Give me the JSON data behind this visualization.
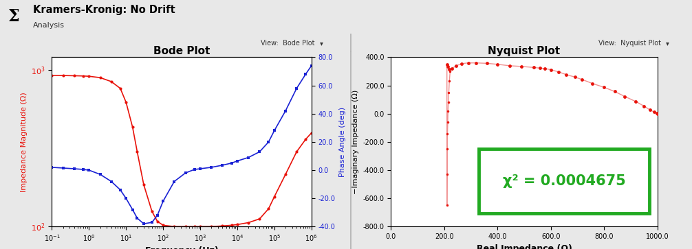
{
  "bode_title": "Bode Plot",
  "nyquist_title": "Nyquist Plot",
  "header_title": "Kramers-Kronig: No Drift",
  "header_subtitle": "Analysis",
  "view_bode": "View:  Bode Plot",
  "view_nyquist": "View:  Nyquist Plot",
  "bode_xlabel": "Frequency (Hz)",
  "bode_ylabel_left": "Impedance Magnitude (Ω)",
  "bode_ylabel_right": "Phase Angle (deg)",
  "nyquist_xlabel": "Real Impedance (Ω)",
  "nyquist_ylabel": "−Imaginary Impedance (Ω)",
  "chi2_text": "χ² = 0.0004675",
  "bode_freq": [
    0.1,
    0.2,
    0.4,
    0.7,
    1.0,
    2.0,
    4.0,
    7.0,
    10.0,
    15.0,
    20.0,
    30.0,
    50.0,
    70.0,
    100.0,
    200.0,
    400.0,
    700.0,
    1000.0,
    2000.0,
    4000.0,
    7000.0,
    10000.0,
    20000.0,
    40000.0,
    70000.0,
    100000.0,
    200000.0,
    400000.0,
    700000.0,
    1000000.0
  ],
  "bode_mag": [
    920,
    918,
    915,
    912,
    908,
    890,
    840,
    760,
    620,
    430,
    300,
    185,
    125,
    108,
    102,
    100,
    100,
    100,
    100,
    100,
    101,
    102,
    103,
    106,
    112,
    130,
    155,
    215,
    300,
    360,
    395
  ],
  "bode_phase": [
    2.0,
    1.5,
    1.0,
    0.5,
    0.0,
    -3.0,
    -8.0,
    -14.0,
    -20.0,
    -28.0,
    -34.0,
    -38.0,
    -37.0,
    -32.0,
    -22.0,
    -8.0,
    -2.0,
    0.5,
    1.0,
    2.0,
    3.5,
    5.0,
    6.5,
    9.0,
    13.0,
    20.0,
    28.0,
    42.0,
    58.0,
    68.0,
    74.0
  ],
  "nyquist_real_upper": [
    210.0,
    213.0,
    218.0,
    228.0,
    245.0,
    265.0,
    290.0,
    320.0,
    360.0,
    400.0,
    445.0,
    490.0,
    535.0,
    560.0,
    578.0,
    600.0,
    628.0,
    658.0,
    690.0,
    718.0,
    755.0,
    800.0,
    840.0,
    878.0,
    918.0,
    950.0,
    972.0,
    988.0,
    997.0,
    1000.0
  ],
  "nyquist_imag_upper": [
    350.0,
    335.0,
    315.0,
    320.0,
    340.0,
    355.0,
    360.0,
    360.0,
    357.0,
    350.0,
    340.0,
    335.0,
    328.0,
    323.0,
    320.0,
    312.0,
    297.0,
    277.0,
    260.0,
    242.0,
    215.0,
    187.0,
    157.0,
    122.0,
    87.0,
    54.0,
    27.0,
    12.0,
    3.0,
    0.0
  ],
  "nyquist_real_lower": [
    210.0,
    210.5,
    211.0,
    212.0,
    213.0,
    214.0,
    215.0,
    217.0,
    219.0,
    222.0
  ],
  "nyquist_imag_lower": [
    -650.0,
    -430.0,
    -250.0,
    -140.0,
    -60.0,
    20.0,
    80.0,
    150.0,
    230.0,
    300.0
  ],
  "bode_color_mag": "#e8120a",
  "bode_color_phase": "#1a22d4",
  "nyquist_color_main": "#e8120a",
  "nyquist_color_line": "#f09090",
  "bg_color": "#e8e8e8",
  "plot_bg_color": "#ffffff",
  "header_bg": "#d8d8d8",
  "toolbar_bg": "#ececec",
  "green_box_color": "#22aa22",
  "divider_color": "#b0b0b0",
  "bode_ylim_mag_log": [
    100,
    1200
  ],
  "bode_ylim_phase": [
    -40,
    80
  ],
  "nyquist_xlim": [
    0.0,
    1000.0
  ],
  "nyquist_ylim": [
    -800.0,
    400.0
  ],
  "phase_yticks": [
    -40.0,
    -20.0,
    0.0,
    20.0,
    40.0,
    60.0,
    80.0
  ],
  "nyquist_xticks": [
    0.0,
    200.0,
    400.0,
    600.0,
    800.0,
    1000.0
  ],
  "nyquist_yticks": [
    -800.0,
    -600.0,
    -400.0,
    -200.0,
    0.0,
    200.0,
    400.0
  ]
}
